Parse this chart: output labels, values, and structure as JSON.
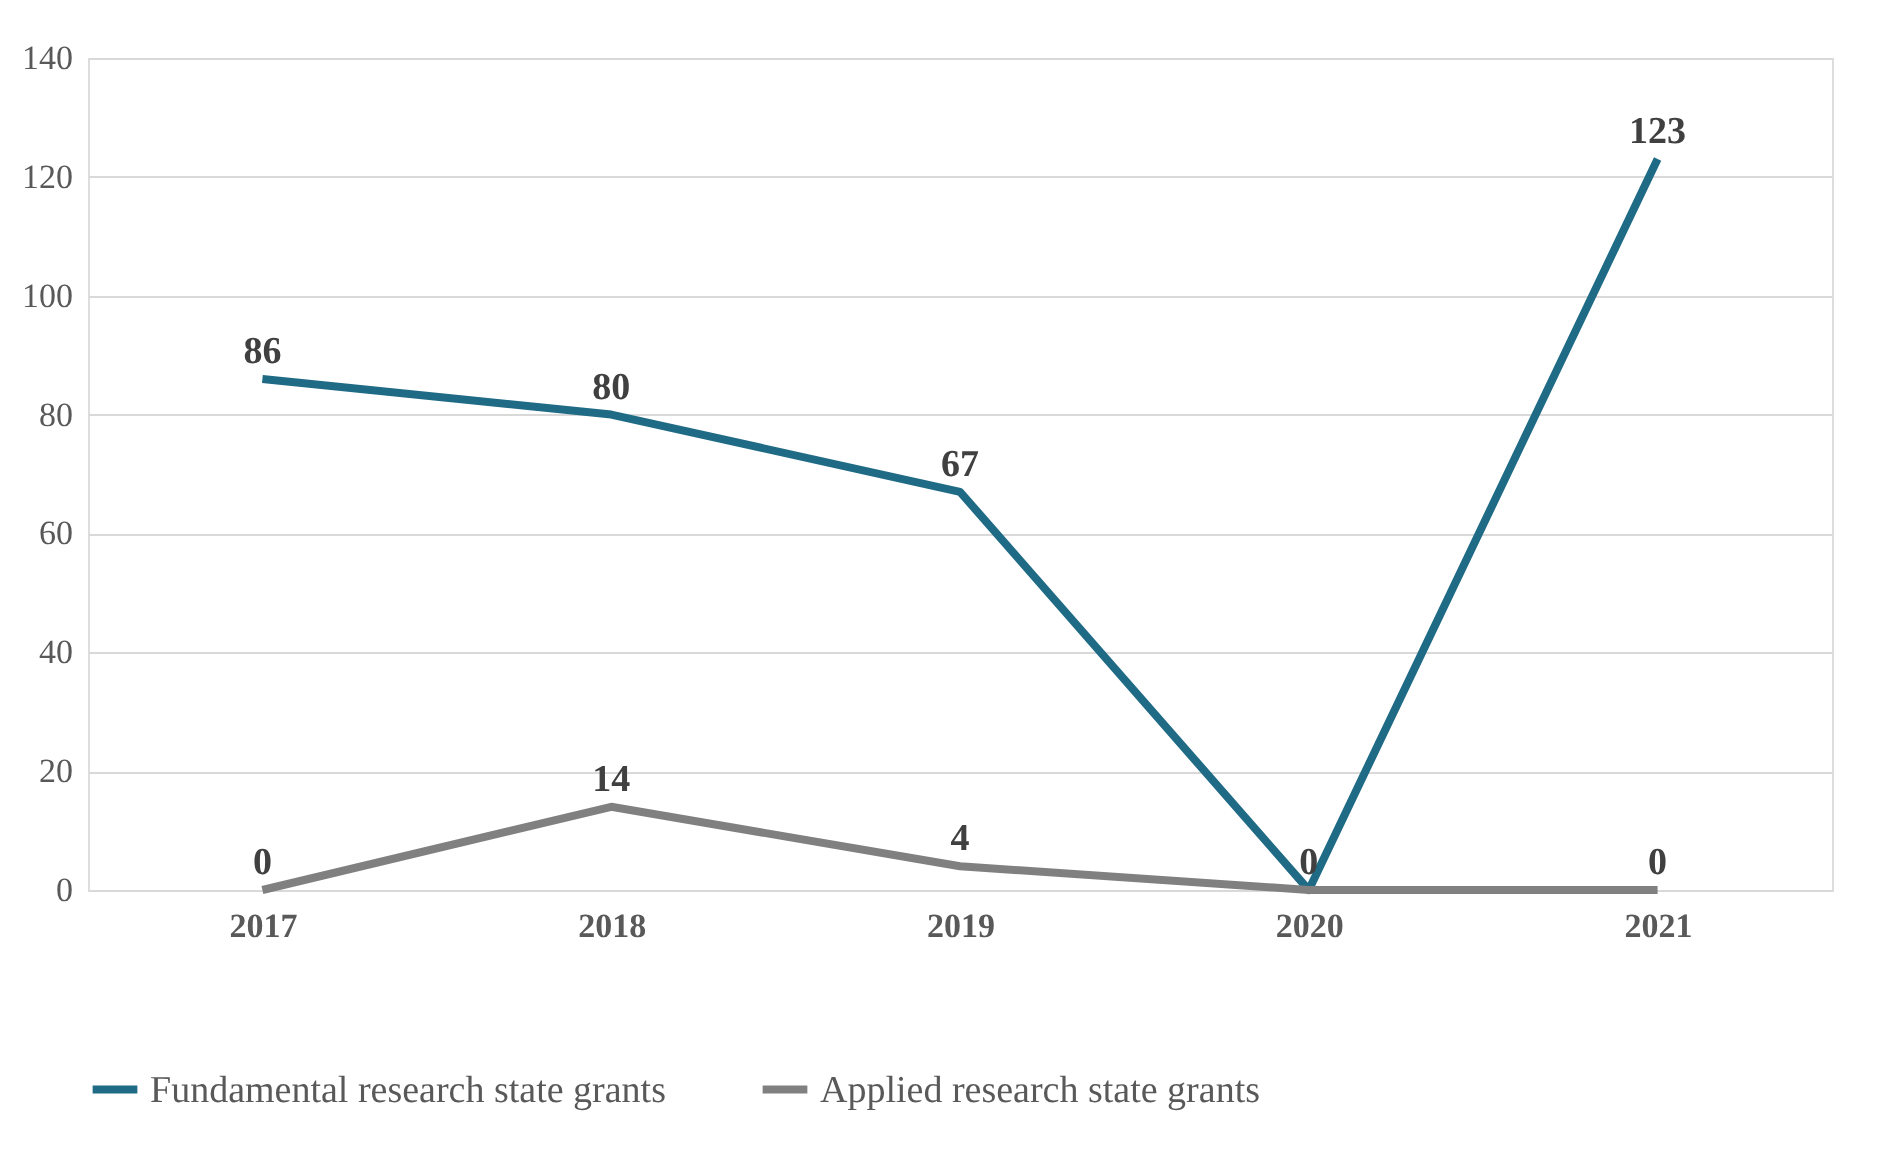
{
  "chart_data": {
    "type": "line",
    "categories": [
      "2017",
      "2018",
      "2019",
      "2020",
      "2021"
    ],
    "series": [
      {
        "name": "Fundamental research state grants",
        "color": "#1f6a85",
        "values": [
          86,
          80,
          67,
          0,
          123
        ],
        "value_labels": [
          "86",
          "80",
          "67",
          "0",
          "123"
        ]
      },
      {
        "name": "Applied research state grants",
        "color": "#808080",
        "values": [
          0,
          14,
          4,
          0,
          0
        ],
        "value_labels": [
          "0",
          "14",
          "4",
          null,
          "0"
        ]
      }
    ],
    "ylim": [
      0,
      140
    ],
    "yticks": [
      0,
      20,
      40,
      60,
      80,
      100,
      120,
      140
    ],
    "grid": "y",
    "legend": "bottom",
    "marker": "none",
    "line_style": "solid"
  }
}
